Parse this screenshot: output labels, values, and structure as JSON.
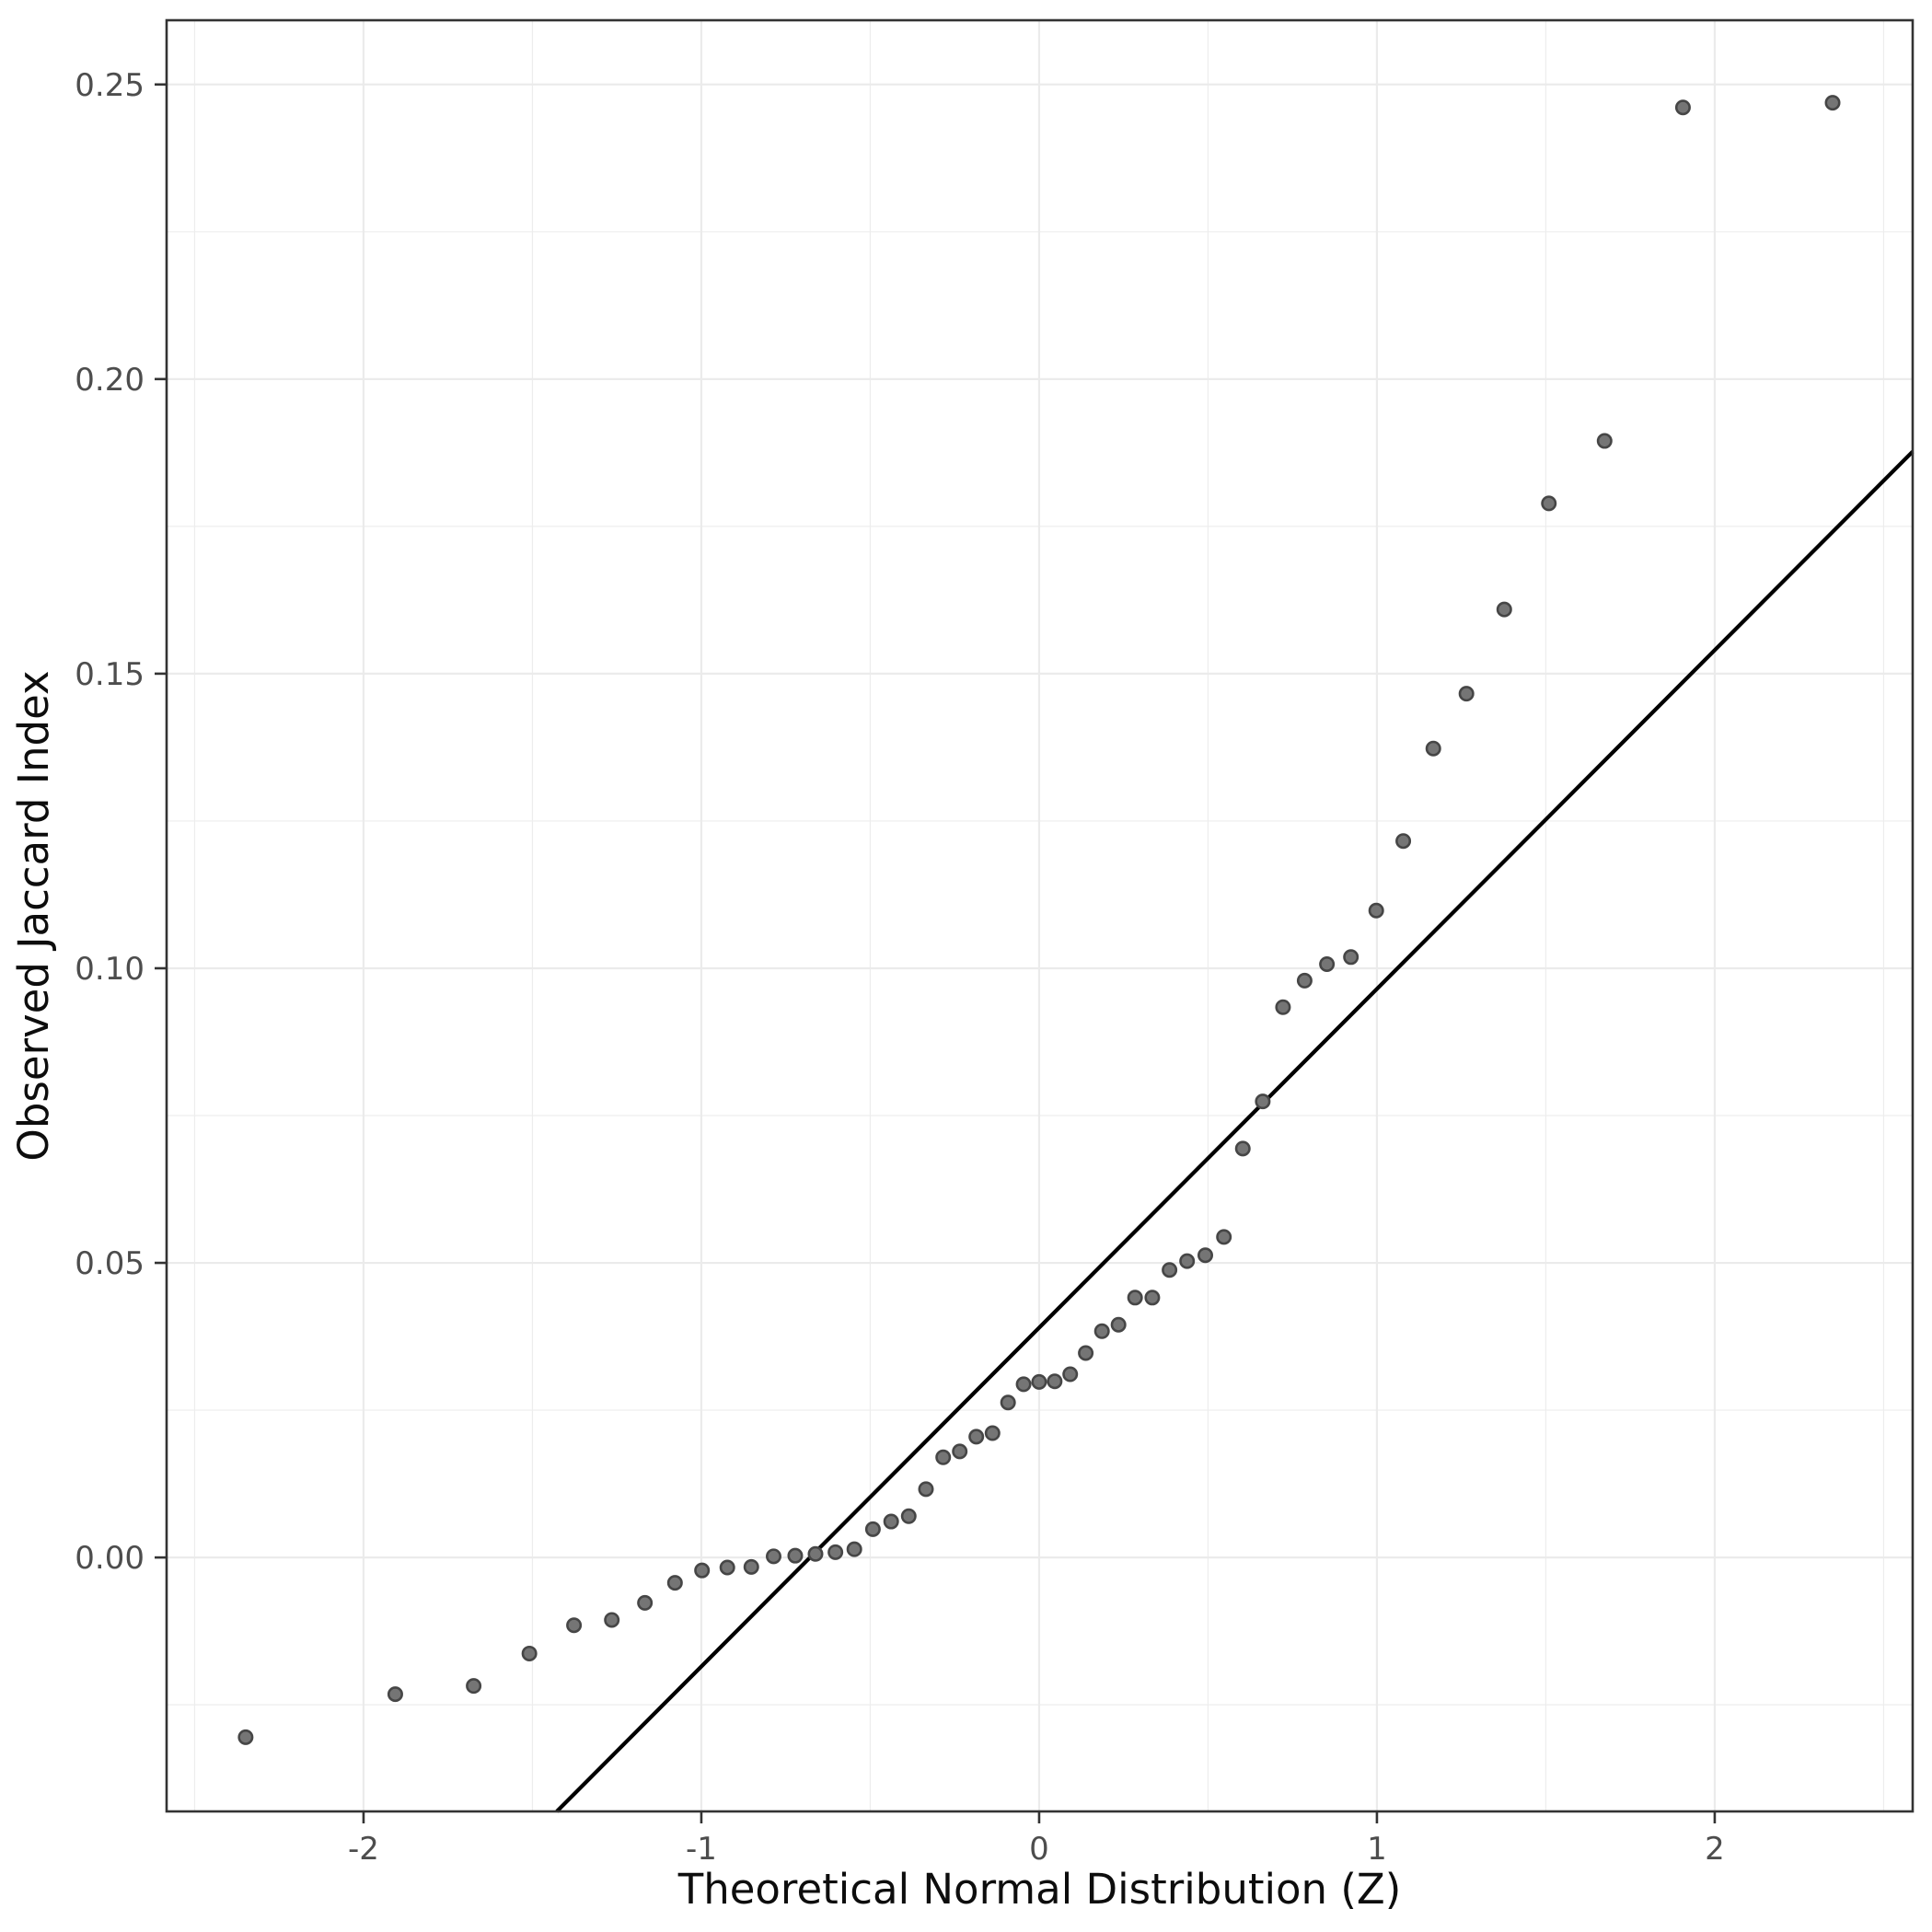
{
  "chart_data": {
    "type": "scatter",
    "title": "",
    "xlabel": "Theoretical Normal Distribution (Z)",
    "ylabel": "Observed Jaccard Index",
    "x_ticks": [
      -2,
      -1,
      0,
      1,
      2
    ],
    "x_tick_labels": [
      "-2",
      "-1",
      "0",
      "1",
      "2"
    ],
    "x_minor_ticks": [
      -2.5,
      -1.5,
      -0.5,
      0.5,
      1.5,
      2.5
    ],
    "y_ticks": [
      0.0,
      0.05,
      0.1,
      0.15,
      0.2,
      0.25
    ],
    "y_tick_labels": [
      "0.00",
      "0.05",
      "0.10",
      "0.15",
      "0.20",
      "0.25"
    ],
    "y_minor_ticks": [
      -0.025,
      0.025,
      0.075,
      0.125,
      0.175,
      0.225
    ],
    "xlim": [
      -2.583,
      2.586
    ],
    "ylim": [
      -0.0431,
      0.2609
    ],
    "grid": "on",
    "legend": "none",
    "n_points": 53,
    "points": [
      [
        -2.349,
        -0.0305
      ],
      [
        -1.906,
        -0.0232
      ],
      [
        -1.674,
        -0.0218
      ],
      [
        -1.509,
        -0.0163
      ],
      [
        -1.377,
        -0.0115
      ],
      [
        -1.265,
        -0.0106
      ],
      [
        -1.167,
        -0.0077
      ],
      [
        -1.078,
        -0.0043
      ],
      [
        -0.998,
        -0.0022
      ],
      [
        -0.923,
        -0.0017
      ],
      [
        -0.852,
        -0.0016
      ],
      [
        -0.786,
        0.0002
      ],
      [
        -0.722,
        0.0003
      ],
      [
        -0.662,
        0.0006
      ],
      [
        -0.603,
        0.0009
      ],
      [
        -0.547,
        0.0014
      ],
      [
        -0.492,
        0.0048
      ],
      [
        -0.438,
        0.0061
      ],
      [
        -0.386,
        0.007
      ],
      [
        -0.335,
        0.0116
      ],
      [
        -0.284,
        0.017
      ],
      [
        -0.235,
        0.018
      ],
      [
        -0.186,
        0.0205
      ],
      [
        -0.138,
        0.0211
      ],
      [
        -0.092,
        0.0263
      ],
      [
        -0.046,
        0.0294
      ],
      [
        0.0,
        0.0298
      ],
      [
        0.046,
        0.0299
      ],
      [
        0.092,
        0.0311
      ],
      [
        0.138,
        0.0347
      ],
      [
        0.186,
        0.0384
      ],
      [
        0.235,
        0.0395
      ],
      [
        0.284,
        0.0441
      ],
      [
        0.335,
        0.0441
      ],
      [
        0.386,
        0.0488
      ],
      [
        0.438,
        0.0503
      ],
      [
        0.492,
        0.0513
      ],
      [
        0.547,
        0.0544
      ],
      [
        0.603,
        0.0694
      ],
      [
        0.662,
        0.0774
      ],
      [
        0.722,
        0.0934
      ],
      [
        0.786,
        0.0979
      ],
      [
        0.852,
        0.1007
      ],
      [
        0.923,
        0.1019
      ],
      [
        0.998,
        0.1098
      ],
      [
        1.078,
        0.1216
      ],
      [
        1.167,
        0.1373
      ],
      [
        1.265,
        0.1466
      ],
      [
        1.377,
        0.1609
      ],
      [
        1.509,
        0.1789
      ],
      [
        1.674,
        0.1895
      ],
      [
        1.906,
        0.2461
      ],
      [
        2.349,
        0.2469
      ]
    ],
    "ref_line": {
      "slope": 0.0575,
      "intercept": 0.039
    },
    "colors": {
      "background": "#ffffff",
      "panel_background": "#ffffff",
      "grid_major": "#ebebeb",
      "grid_minor": "#ededed",
      "panel_border": "#333333",
      "tick_mark": "#333333",
      "tick_label": "#4d4d4d",
      "axis_title": "#0d0d0d",
      "point_fill": "#757575",
      "point_stroke": "#464646",
      "ref_line": "#000000"
    }
  }
}
